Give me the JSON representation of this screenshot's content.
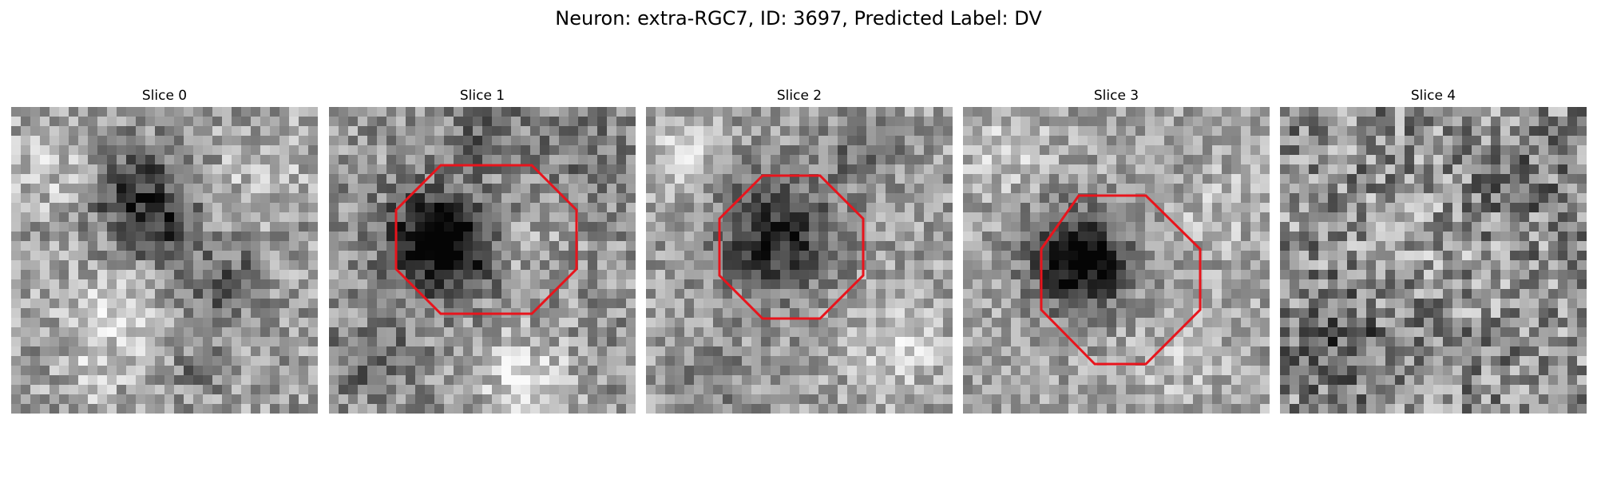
{
  "figure": {
    "title": "Neuron: extra-RGC7, ID: 3697, Predicted Label: DV"
  },
  "slices": [
    {
      "title": "Slice 0",
      "has_contour": false,
      "contour_color": null
    },
    {
      "title": "Slice 1",
      "has_contour": true,
      "contour_color": "#e8141c"
    },
    {
      "title": "Slice 2",
      "has_contour": true,
      "contour_color": "#e8141c"
    },
    {
      "title": "Slice 3",
      "has_contour": true,
      "contour_color": "#e8141c"
    },
    {
      "title": "Slice 4",
      "has_contour": false,
      "contour_color": null
    }
  ]
}
